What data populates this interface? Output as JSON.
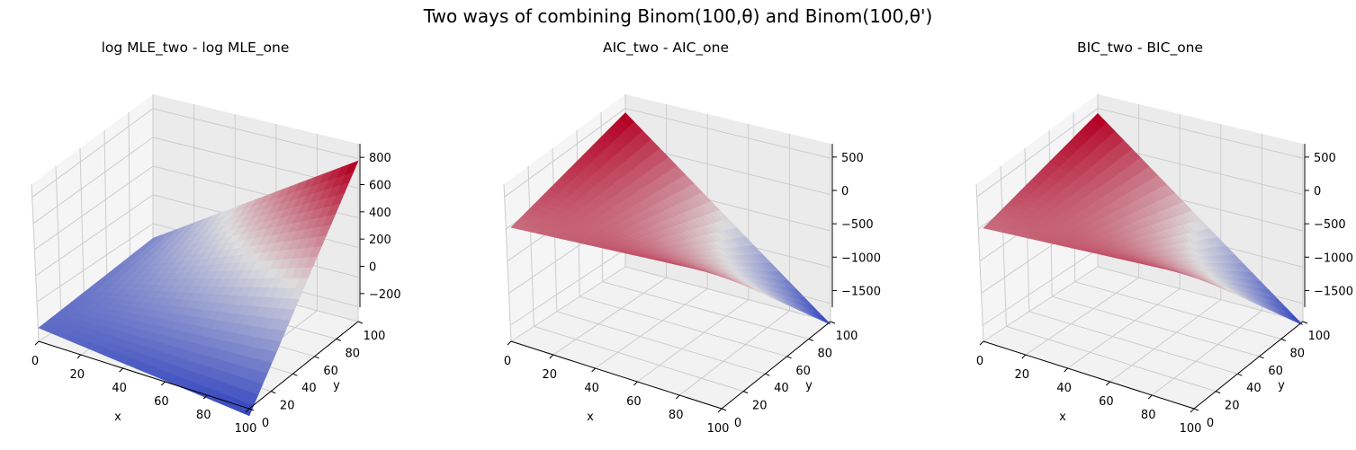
{
  "figure": {
    "title": "Two ways of combining Binom(100,θ) and Binom(100,θ')"
  },
  "chart_data": [
    {
      "type": "surface",
      "title": "log MLE_two - log MLE_one",
      "xlabel": "x",
      "ylabel": "y",
      "zlabel": "",
      "xlim": [
        0,
        100
      ],
      "ylim": [
        0,
        100
      ],
      "zlim": [
        -300,
        900
      ],
      "x_ticks": [
        "0",
        "20",
        "40",
        "60",
        "80",
        "100"
      ],
      "y_ticks": [
        "0",
        "20",
        "40",
        "60",
        "80",
        "100"
      ],
      "z_ticks": [
        {
          "v": -200,
          "t": "−200"
        },
        {
          "v": 0,
          "t": "0"
        },
        {
          "v": 200,
          "t": "200"
        },
        {
          "v": 400,
          "t": "400"
        },
        {
          "v": 600,
          "t": "600"
        },
        {
          "v": 800,
          "t": "800"
        }
      ],
      "corners_z": {
        "x0_y0": -180,
        "x100_y0": -330,
        "x0_y100": -70,
        "x100_y100": 900
      },
      "colormap": "coolwarm",
      "colormap_colors": [
        "#3b4cc0",
        "#dddddd",
        "#b40426"
      ],
      "grid": true
    },
    {
      "type": "surface",
      "title": "AIC_two - AIC_one",
      "xlabel": "x",
      "ylabel": "y",
      "zlabel": "",
      "xlim": [
        0,
        100
      ],
      "ylim": [
        0,
        100
      ],
      "zlim": [
        -1750,
        700
      ],
      "x_ticks": [
        "0",
        "20",
        "40",
        "60",
        "80",
        "100"
      ],
      "y_ticks": [
        "0",
        "20",
        "40",
        "60",
        "80",
        "100"
      ],
      "z_ticks": [
        {
          "v": 500,
          "t": "500"
        },
        {
          "v": 0,
          "t": "0"
        },
        {
          "v": -500,
          "t": "−500"
        },
        {
          "v": -1000,
          "t": "−1000"
        },
        {
          "v": -1500,
          "t": "−1500"
        }
      ],
      "corners_z": {
        "x0_y0": 0,
        "x100_y0": 300,
        "x0_y100": 600,
        "x100_y100": -1750
      },
      "colormap": "coolwarm",
      "colormap_colors": [
        "#3b4cc0",
        "#dddddd",
        "#b40426"
      ],
      "grid": true
    },
    {
      "type": "surface",
      "title": "BIC_two - BIC_one",
      "xlabel": "x",
      "ylabel": "y",
      "zlabel": "",
      "xlim": [
        0,
        100
      ],
      "ylim": [
        0,
        100
      ],
      "zlim": [
        -1750,
        700
      ],
      "x_ticks": [
        "0",
        "20",
        "40",
        "60",
        "80",
        "100"
      ],
      "y_ticks": [
        "0",
        "20",
        "40",
        "60",
        "80",
        "100"
      ],
      "z_ticks": [
        {
          "v": 500,
          "t": "500"
        },
        {
          "v": 0,
          "t": "0"
        },
        {
          "v": -500,
          "t": "−500"
        },
        {
          "v": -1000,
          "t": "−1000"
        },
        {
          "v": -1500,
          "t": "−1500"
        }
      ],
      "corners_z": {
        "x0_y0": -10,
        "x100_y0": 290,
        "x0_y100": 590,
        "x100_y100": -1760
      },
      "colormap": "coolwarm",
      "colormap_colors": [
        "#3b4cc0",
        "#dddddd",
        "#b40426"
      ],
      "grid": true
    }
  ]
}
